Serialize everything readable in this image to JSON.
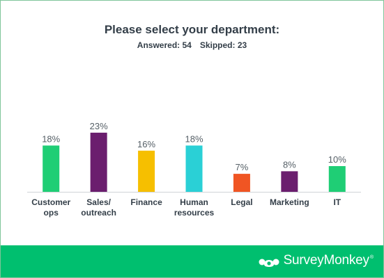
{
  "chart_data": {
    "type": "bar",
    "title": "Please select your department:",
    "subtitle": {
      "answered": "Answered: 54",
      "skipped": "Skipped: 23"
    },
    "categories": [
      [
        "Customer",
        "ops"
      ],
      [
        "Sales/",
        "outreach"
      ],
      [
        "Finance"
      ],
      [
        "Human",
        "resources"
      ],
      [
        "Legal"
      ],
      [
        "Marketing"
      ],
      [
        "IT"
      ]
    ],
    "values": [
      18,
      23,
      16,
      18,
      7,
      8,
      10
    ],
    "value_labels": [
      "18%",
      "23%",
      "16%",
      "18%",
      "7%",
      "8%",
      "10%"
    ],
    "colors": [
      "#1fce75",
      "#6b1e6e",
      "#f6bf00",
      "#2ad0d6",
      "#f05523",
      "#6b1e6e",
      "#1fce75"
    ],
    "ylim": [
      0,
      30
    ],
    "grid": false,
    "legend": "none",
    "xlabel": "",
    "ylabel": ""
  },
  "footer": {
    "brand": "SurveyMonkey",
    "brand_mark": "®",
    "background": "#00bf6f"
  }
}
